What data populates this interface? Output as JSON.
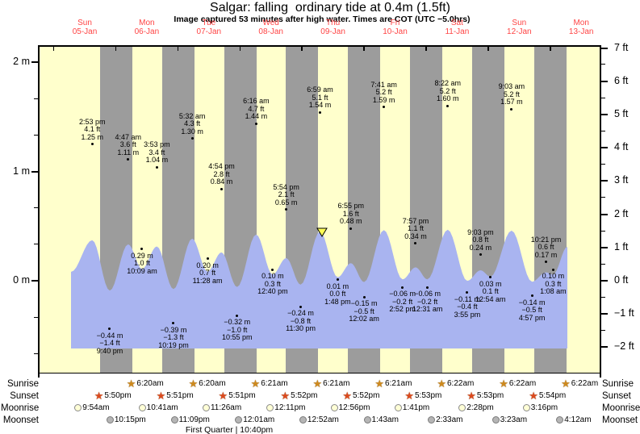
{
  "title": "Salgar: falling  ordinary tide at 0.4m (1.5ft)",
  "subtitle": "Image captured 53 minutes after high water. Times are COT (UTC −5.0hrs)",
  "colors": {
    "day_band": "#ffffcc",
    "night_band": "#9c9c9c",
    "water": "#a9b4f0",
    "day_label_red": "#ff4444",
    "sunrise_star": "#ce8a1e",
    "sunset_star": "#dc4a1e",
    "moonrise_fill": "#ffffd6",
    "moonset_fill": "#b5b5b5",
    "marker_yellow": "#ffff55"
  },
  "icons": {
    "sunrise": "star-icon",
    "sunset": "star-icon",
    "moonrise": "moon-circle-icon",
    "moonset": "moon-circle-icon",
    "star_glyph": "★"
  },
  "row_labels": {
    "sunrise": "Sunrise",
    "sunset": "Sunset",
    "moonrise": "Moonrise",
    "moonset": "Moonset"
  },
  "chart_data": {
    "type": "area",
    "title": "Salgar: falling  ordinary tide at 0.4m (1.5ft)",
    "y_axis_left": {
      "unit": "m",
      "tick_values": [
        2,
        1,
        0
      ],
      "range": [
        -0.85,
        2.14
      ]
    },
    "y_axis_right": {
      "unit": "ft",
      "tick_values": [
        7,
        6,
        5,
        4,
        3,
        2,
        1,
        0,
        -1,
        -2
      ]
    },
    "days": [
      {
        "dow": "Sun",
        "date": "05-Jan"
      },
      {
        "dow": "Mon",
        "date": "06-Jan"
      },
      {
        "dow": "Tue",
        "date": "07-Jan"
      },
      {
        "dow": "Wed",
        "date": "08-Jan"
      },
      {
        "dow": "Thu",
        "date": "09-Jan"
      },
      {
        "dow": "Fri",
        "date": "10-Jan"
      },
      {
        "dow": "Sat",
        "date": "11-Jan"
      },
      {
        "dow": "Sun",
        "date": "12-Jan"
      },
      {
        "dow": "Mon",
        "date": "13-Jan"
      }
    ],
    "tides": [
      {
        "day": 0,
        "time": "2:53 pm",
        "height_ft": 4.1,
        "height_m": 1.25,
        "type": "high"
      },
      {
        "day": 0,
        "time": "9:40 pm",
        "height_ft": -1.4,
        "height_m": -0.44,
        "type": "low"
      },
      {
        "day": 1,
        "time": "4:47 am",
        "height_ft": 3.6,
        "height_m": 1.11,
        "type": "high"
      },
      {
        "day": 1,
        "time": "10:09 am",
        "height_ft": 1.0,
        "height_m": 0.29,
        "type": "low"
      },
      {
        "day": 1,
        "time": "3:53 pm",
        "height_ft": 3.4,
        "height_m": 1.04,
        "type": "high"
      },
      {
        "day": 1,
        "time": "10:19 pm",
        "height_ft": -1.3,
        "height_m": -0.39,
        "type": "low"
      },
      {
        "day": 2,
        "time": "5:32 am",
        "height_ft": 4.3,
        "height_m": 1.3,
        "type": "high"
      },
      {
        "day": 2,
        "time": "11:28 am",
        "height_ft": 0.7,
        "height_m": 0.2,
        "type": "low"
      },
      {
        "day": 2,
        "time": "4:54 pm",
        "height_ft": 2.8,
        "height_m": 0.84,
        "type": "high"
      },
      {
        "day": 2,
        "time": "10:55 pm",
        "height_ft": -1.0,
        "height_m": -0.32,
        "type": "low"
      },
      {
        "day": 3,
        "time": "6:16 am",
        "height_ft": 4.7,
        "height_m": 1.44,
        "type": "high"
      },
      {
        "day": 3,
        "time": "12:40 pm",
        "height_ft": 0.3,
        "height_m": 0.1,
        "type": "low"
      },
      {
        "day": 3,
        "time": "5:54 pm",
        "height_ft": 2.1,
        "height_m": 0.65,
        "type": "high"
      },
      {
        "day": 3,
        "time": "11:30 pm",
        "height_ft": -0.8,
        "height_m": -0.24,
        "type": "low"
      },
      {
        "day": 4,
        "time": "6:59 am",
        "height_ft": 5.1,
        "height_m": 1.54,
        "type": "high"
      },
      {
        "day": 4,
        "time": "1:48 pm",
        "height_ft": 0.0,
        "height_m": 0.01,
        "type": "low"
      },
      {
        "day": 4,
        "time": "6:55 pm",
        "height_ft": 1.6,
        "height_m": 0.48,
        "type": "high"
      },
      {
        "day": 5,
        "time": "12:02 am",
        "height_ft": -0.5,
        "height_m": -0.15,
        "type": "low"
      },
      {
        "day": 5,
        "time": "7:41 am",
        "height_ft": 5.2,
        "height_m": 1.59,
        "type": "high"
      },
      {
        "day": 5,
        "time": "2:52 pm",
        "height_ft": -0.2,
        "height_m": -0.06,
        "type": "low"
      },
      {
        "day": 5,
        "time": "7:57 pm",
        "height_ft": 1.1,
        "height_m": 0.34,
        "type": "high"
      },
      {
        "day": 6,
        "time": "12:31 am",
        "height_ft": -0.2,
        "height_m": -0.06,
        "type": "low"
      },
      {
        "day": 6,
        "time": "8:22 am",
        "height_ft": 5.2,
        "height_m": 1.6,
        "type": "high"
      },
      {
        "day": 6,
        "time": "3:55 pm",
        "height_ft": -0.4,
        "height_m": -0.11,
        "type": "low"
      },
      {
        "day": 6,
        "time": "9:03 pm",
        "height_ft": 0.8,
        "height_m": 0.24,
        "type": "high"
      },
      {
        "day": 7,
        "time": "12:54 am",
        "height_ft": 0.1,
        "height_m": 0.03,
        "type": "low"
      },
      {
        "day": 7,
        "time": "9:03 am",
        "height_ft": 5.2,
        "height_m": 1.57,
        "type": "high"
      },
      {
        "day": 7,
        "time": "4:57 pm",
        "height_ft": -0.5,
        "height_m": -0.14,
        "type": "low"
      },
      {
        "day": 7,
        "time": "10:21 pm",
        "height_ft": 0.6,
        "height_m": 0.17,
        "type": "high"
      },
      {
        "day": 8,
        "time": "1:08 am",
        "height_ft": 0.3,
        "height_m": 0.1,
        "type": "low"
      }
    ],
    "sun_moon": {
      "sunrise": [
        {
          "day": 1,
          "time": "6:20am"
        },
        {
          "day": 2,
          "time": "6:20am"
        },
        {
          "day": 3,
          "time": "6:21am"
        },
        {
          "day": 4,
          "time": "6:21am"
        },
        {
          "day": 5,
          "time": "6:21am"
        },
        {
          "day": 6,
          "time": "6:22am"
        },
        {
          "day": 7,
          "time": "6:22am"
        },
        {
          "day": 8,
          "time": "6:22am"
        }
      ],
      "sunset": [
        {
          "day": 0,
          "time": "5:50pm"
        },
        {
          "day": 1,
          "time": "5:51pm"
        },
        {
          "day": 2,
          "time": "5:51pm"
        },
        {
          "day": 3,
          "time": "5:52pm"
        },
        {
          "day": 4,
          "time": "5:52pm"
        },
        {
          "day": 5,
          "time": "5:53pm"
        },
        {
          "day": 6,
          "time": "5:53pm"
        },
        {
          "day": 7,
          "time": "5:54pm"
        }
      ],
      "moonrise": [
        {
          "day": 0,
          "time": "9:54am"
        },
        {
          "day": 1,
          "time": "10:41am"
        },
        {
          "day": 2,
          "time": "11:26am"
        },
        {
          "day": 3,
          "time": "12:11pm"
        },
        {
          "day": 4,
          "time": "12:56pm"
        },
        {
          "day": 5,
          "time": "1:41pm"
        },
        {
          "day": 6,
          "time": "2:28pm"
        },
        {
          "day": 7,
          "time": "3:16pm"
        }
      ],
      "moonset": [
        {
          "day": 0,
          "time": "10:15pm"
        },
        {
          "day": 1,
          "time": "11:09pm"
        },
        {
          "day": 3,
          "time": "12:01am"
        },
        {
          "day": 4,
          "time": "12:52am"
        },
        {
          "day": 5,
          "time": "1:43am"
        },
        {
          "day": 6,
          "time": "2:33am"
        },
        {
          "day": 7,
          "time": "3:23am"
        },
        {
          "day": 8,
          "time": "4:12am"
        }
      ]
    },
    "moon_phase": {
      "name": "First Quarter",
      "time": "10:40pm",
      "display": "First Quarter | 10:40pm"
    }
  }
}
